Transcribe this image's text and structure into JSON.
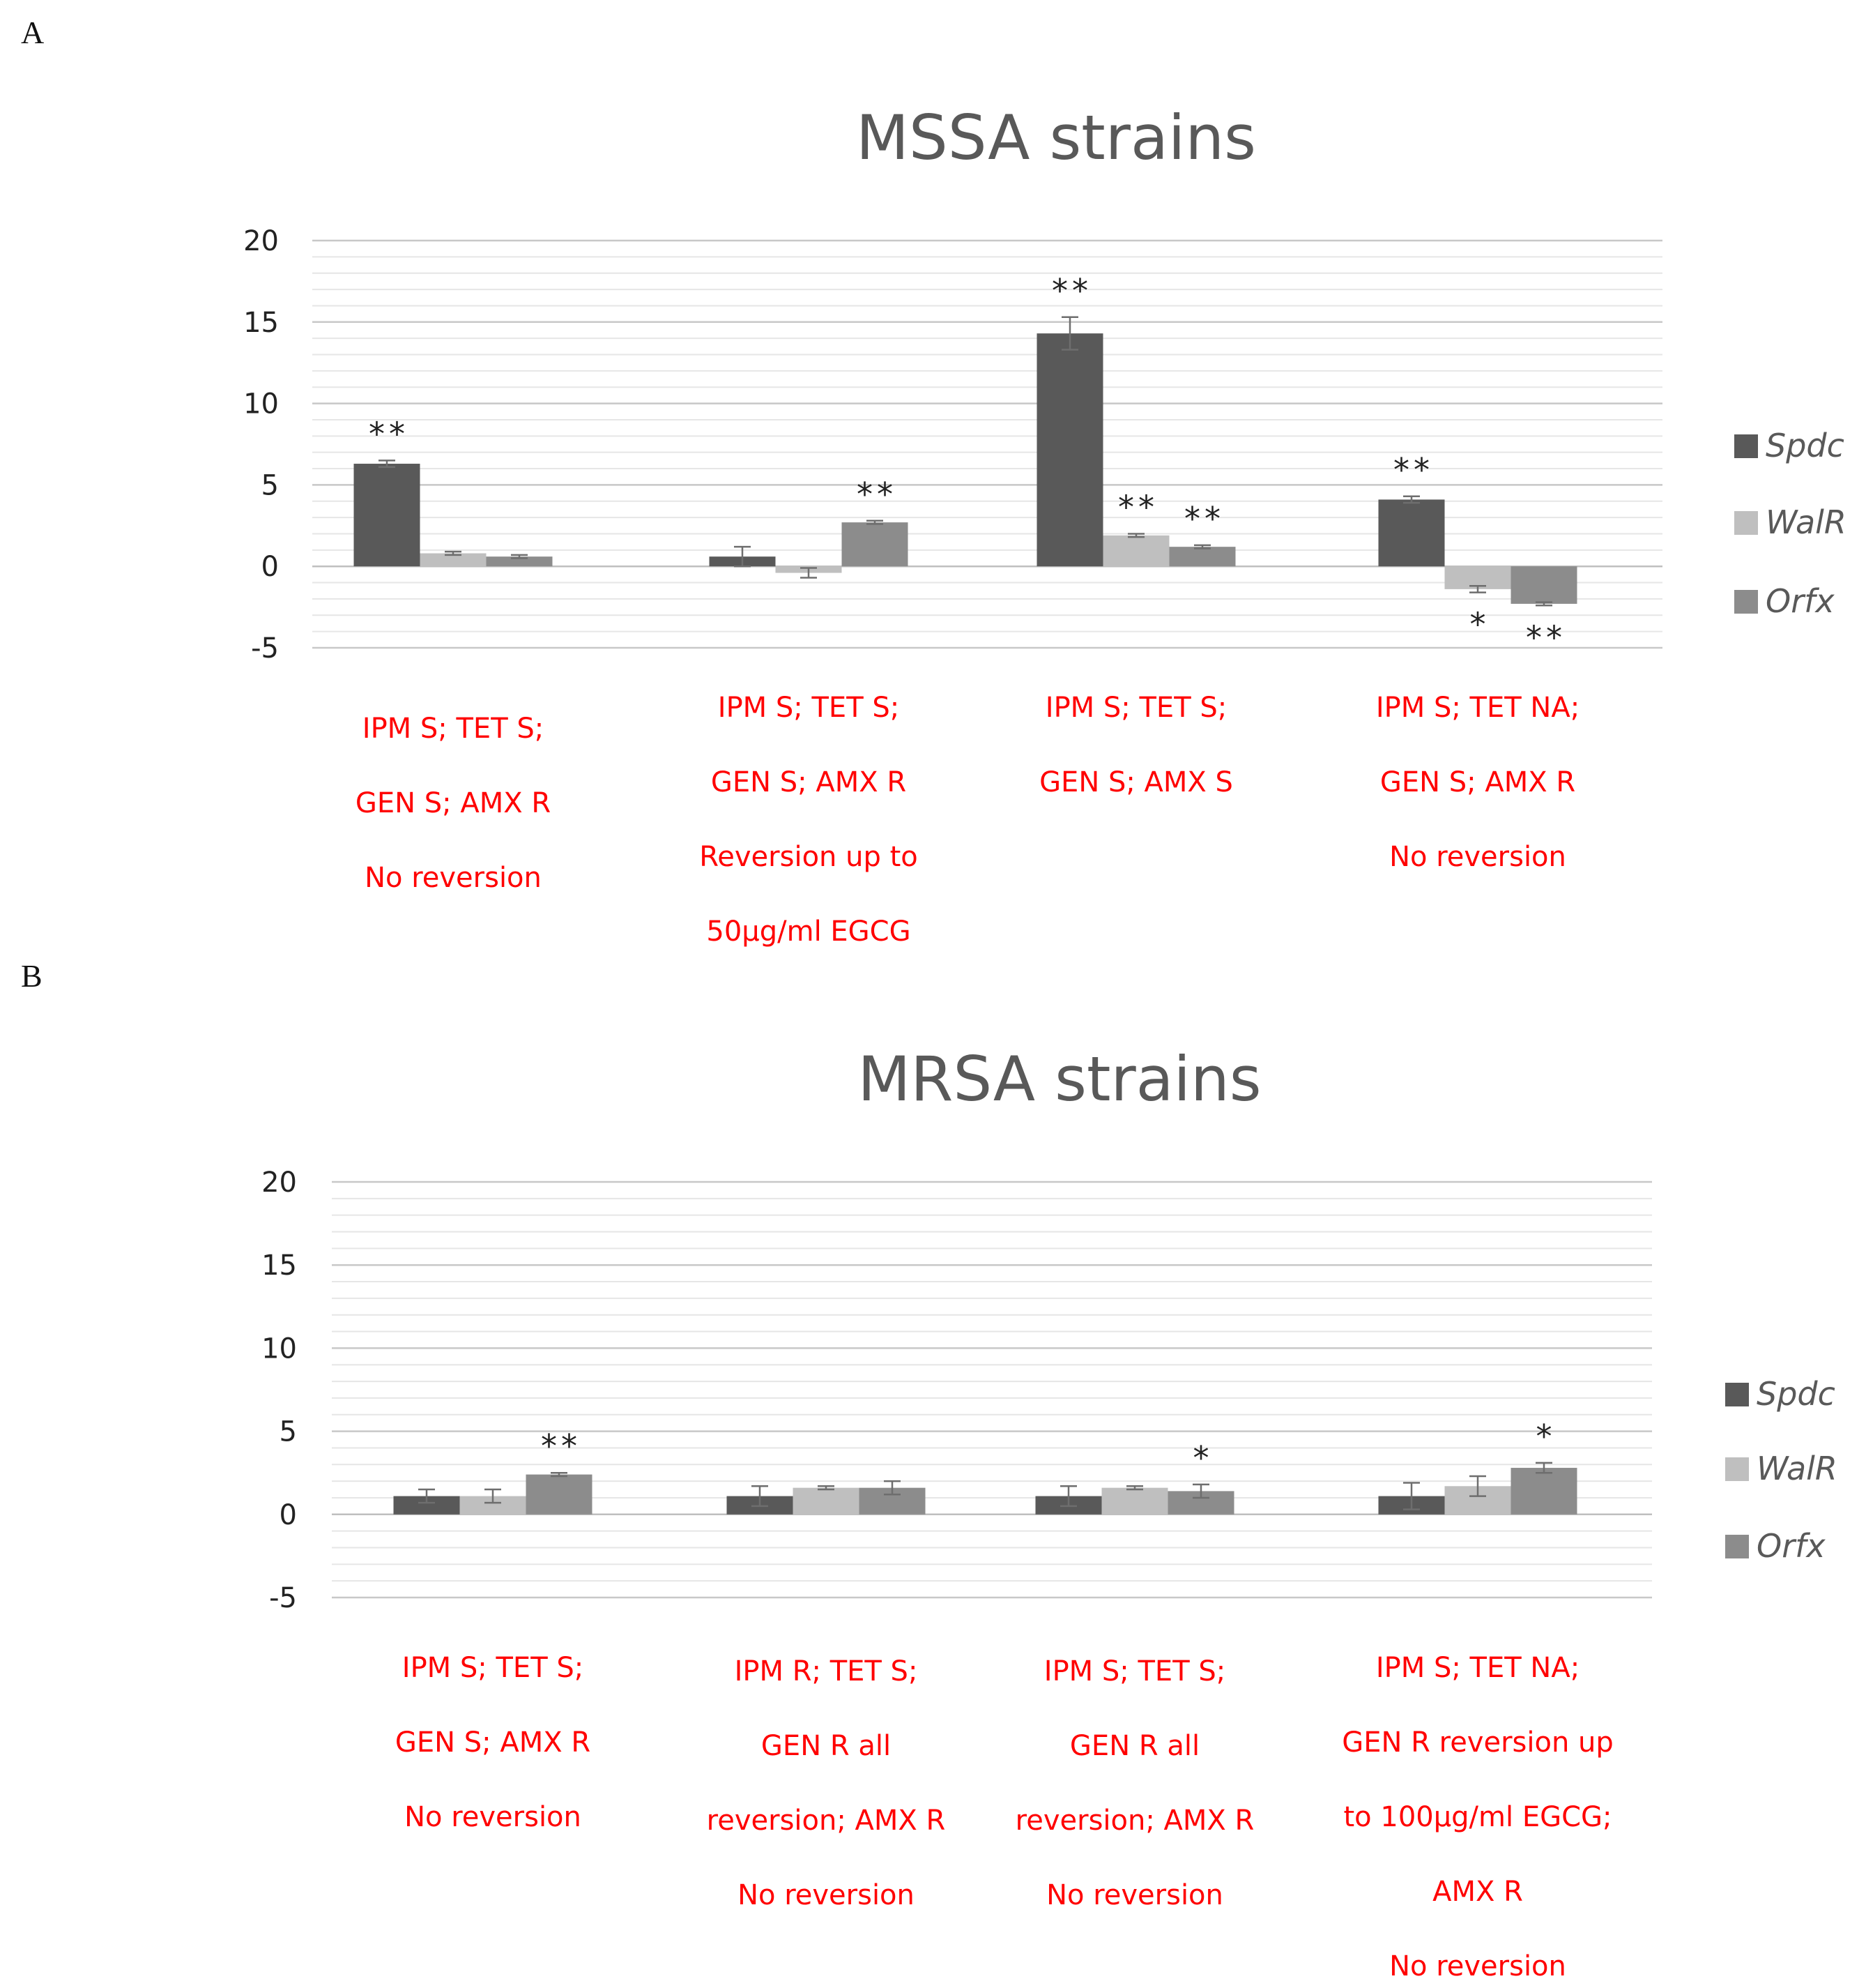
{
  "panels": [
    "A",
    "B"
  ],
  "colors": {
    "Spdc": "#595959",
    "WalR": "#bfbfbf",
    "Orfx": "#8c8c8c",
    "category_text": "#ff0000"
  },
  "chart_data": [
    {
      "type": "bar",
      "panel": "A",
      "title": "MSSA strains",
      "xlabel": "",
      "ylabel": "",
      "ylim": [
        -5,
        20
      ],
      "yticks": [
        20,
        15,
        10,
        5,
        0,
        -5
      ],
      "grid": true,
      "legend_position": "right",
      "categories": [
        [
          "IPM S; TET S;",
          "GEN S; AMX R",
          "No reversion"
        ],
        [
          "IPM S; TET S;",
          "GEN S; AMX R",
          "Reversion up to",
          "50µg/ml EGCG"
        ],
        [
          "IPM S; TET S;",
          "GEN S; AMX S"
        ],
        [
          "IPM S; TET NA;",
          "GEN S; AMX R",
          "No reversion"
        ]
      ],
      "series": [
        {
          "name": "Spdc",
          "values": [
            6.3,
            0.6,
            14.3,
            4.1
          ],
          "errors": [
            0.2,
            0.6,
            1.0,
            0.2
          ],
          "significance": [
            "**",
            "",
            "**",
            "**"
          ]
        },
        {
          "name": "WalR",
          "values": [
            0.8,
            -0.4,
            1.9,
            -1.4
          ],
          "errors": [
            0.1,
            0.3,
            0.1,
            0.2
          ],
          "significance": [
            "",
            "",
            "**",
            "*"
          ]
        },
        {
          "name": "Orfx",
          "values": [
            0.6,
            2.7,
            1.2,
            -2.3
          ],
          "errors": [
            0.1,
            0.1,
            0.1,
            0.1
          ],
          "significance": [
            "",
            "**",
            "**",
            "**"
          ]
        }
      ]
    },
    {
      "type": "bar",
      "panel": "B",
      "title": "MRSA strains",
      "xlabel": "",
      "ylabel": "",
      "ylim": [
        -5,
        20
      ],
      "yticks": [
        20,
        15,
        10,
        5,
        0,
        -5
      ],
      "grid": true,
      "legend_position": "right",
      "categories": [
        [
          "IPM S; TET S;",
          "GEN S; AMX R",
          "No reversion"
        ],
        [
          "IPM R; TET S;",
          "GEN R all",
          "reversion; AMX R",
          "No reversion"
        ],
        [
          "IPM S; TET S;",
          "GEN R all",
          "reversion; AMX R",
          "No reversion"
        ],
        [
          "IPM S; TET NA;",
          "GEN R reversion up",
          "to 100µg/ml EGCG;",
          "AMX R",
          "No reversion"
        ]
      ],
      "series": [
        {
          "name": "Spdc",
          "values": [
            1.1,
            1.1,
            1.1,
            1.1
          ],
          "errors": [
            0.4,
            0.6,
            0.6,
            0.8
          ],
          "significance": [
            "",
            "",
            "",
            ""
          ]
        },
        {
          "name": "WalR",
          "values": [
            1.1,
            1.6,
            1.6,
            1.7
          ],
          "errors": [
            0.4,
            0.1,
            0.1,
            0.6
          ],
          "significance": [
            "",
            "",
            "",
            ""
          ]
        },
        {
          "name": "Orfx",
          "values": [
            2.4,
            1.6,
            1.4,
            2.8
          ],
          "errors": [
            0.1,
            0.4,
            0.4,
            0.3
          ],
          "significance": [
            "**",
            "",
            "*",
            "*"
          ]
        }
      ]
    }
  ]
}
